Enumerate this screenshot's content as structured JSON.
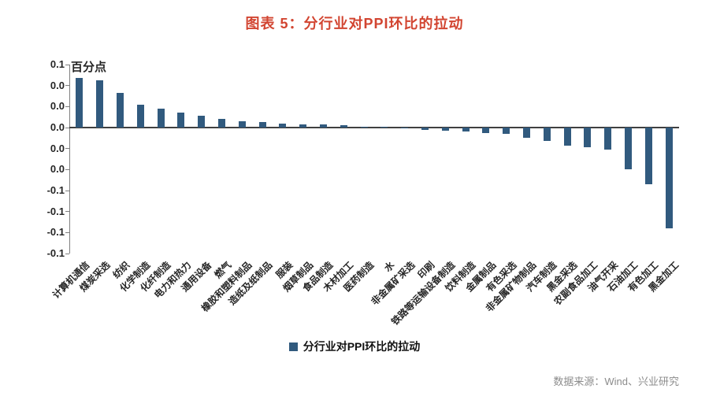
{
  "chart_data": {
    "type": "bar",
    "title": "图表 5：分行业对PPI环比的拉动",
    "unit_label": "百分点",
    "categories": [
      "计算机通信",
      "煤炭采选",
      "纺织",
      "化学制造",
      "化纤制造",
      "电力和热力",
      "通用设备",
      "燃气",
      "橡胶和塑料制品",
      "造纸及纸制品",
      "服装",
      "烟草制品",
      "食品制造",
      "木材加工",
      "医药制造",
      "水",
      "非金属矿采选",
      "印刷",
      "铁路等运输设备制造",
      "饮料制造",
      "金属制品",
      "有色采选",
      "非金属矿物制品",
      "汽车制造",
      "黑金采选",
      "农副食品加工",
      "油气开采",
      "石油加工",
      "有色加工",
      "黑金加工"
    ],
    "values": [
      0.047,
      0.045,
      0.033,
      0.022,
      0.018,
      0.014,
      0.011,
      0.008,
      0.006,
      0.005,
      0.004,
      0.003,
      0.003,
      0.002,
      0.001,
      0.001,
      -0.001,
      -0.002,
      -0.003,
      -0.004,
      -0.005,
      -0.006,
      -0.01,
      -0.013,
      -0.017,
      -0.019,
      -0.021,
      -0.04,
      -0.054,
      -0.096
    ],
    "y_axis": {
      "max": 0.06,
      "min": -0.12,
      "tick_step": 0.02,
      "tick_labels": [
        "0.1",
        "0.0",
        "0.0",
        "0.0",
        "0.0",
        "0.0",
        "-0.1",
        "-0.1",
        "-0.1",
        "-0.1"
      ]
    },
    "legend_label": "分行业对PPI环比的拉动",
    "bar_color": "#315a7e",
    "title_color": "#d24531",
    "source": "数据来源：Wind、兴业研究"
  }
}
